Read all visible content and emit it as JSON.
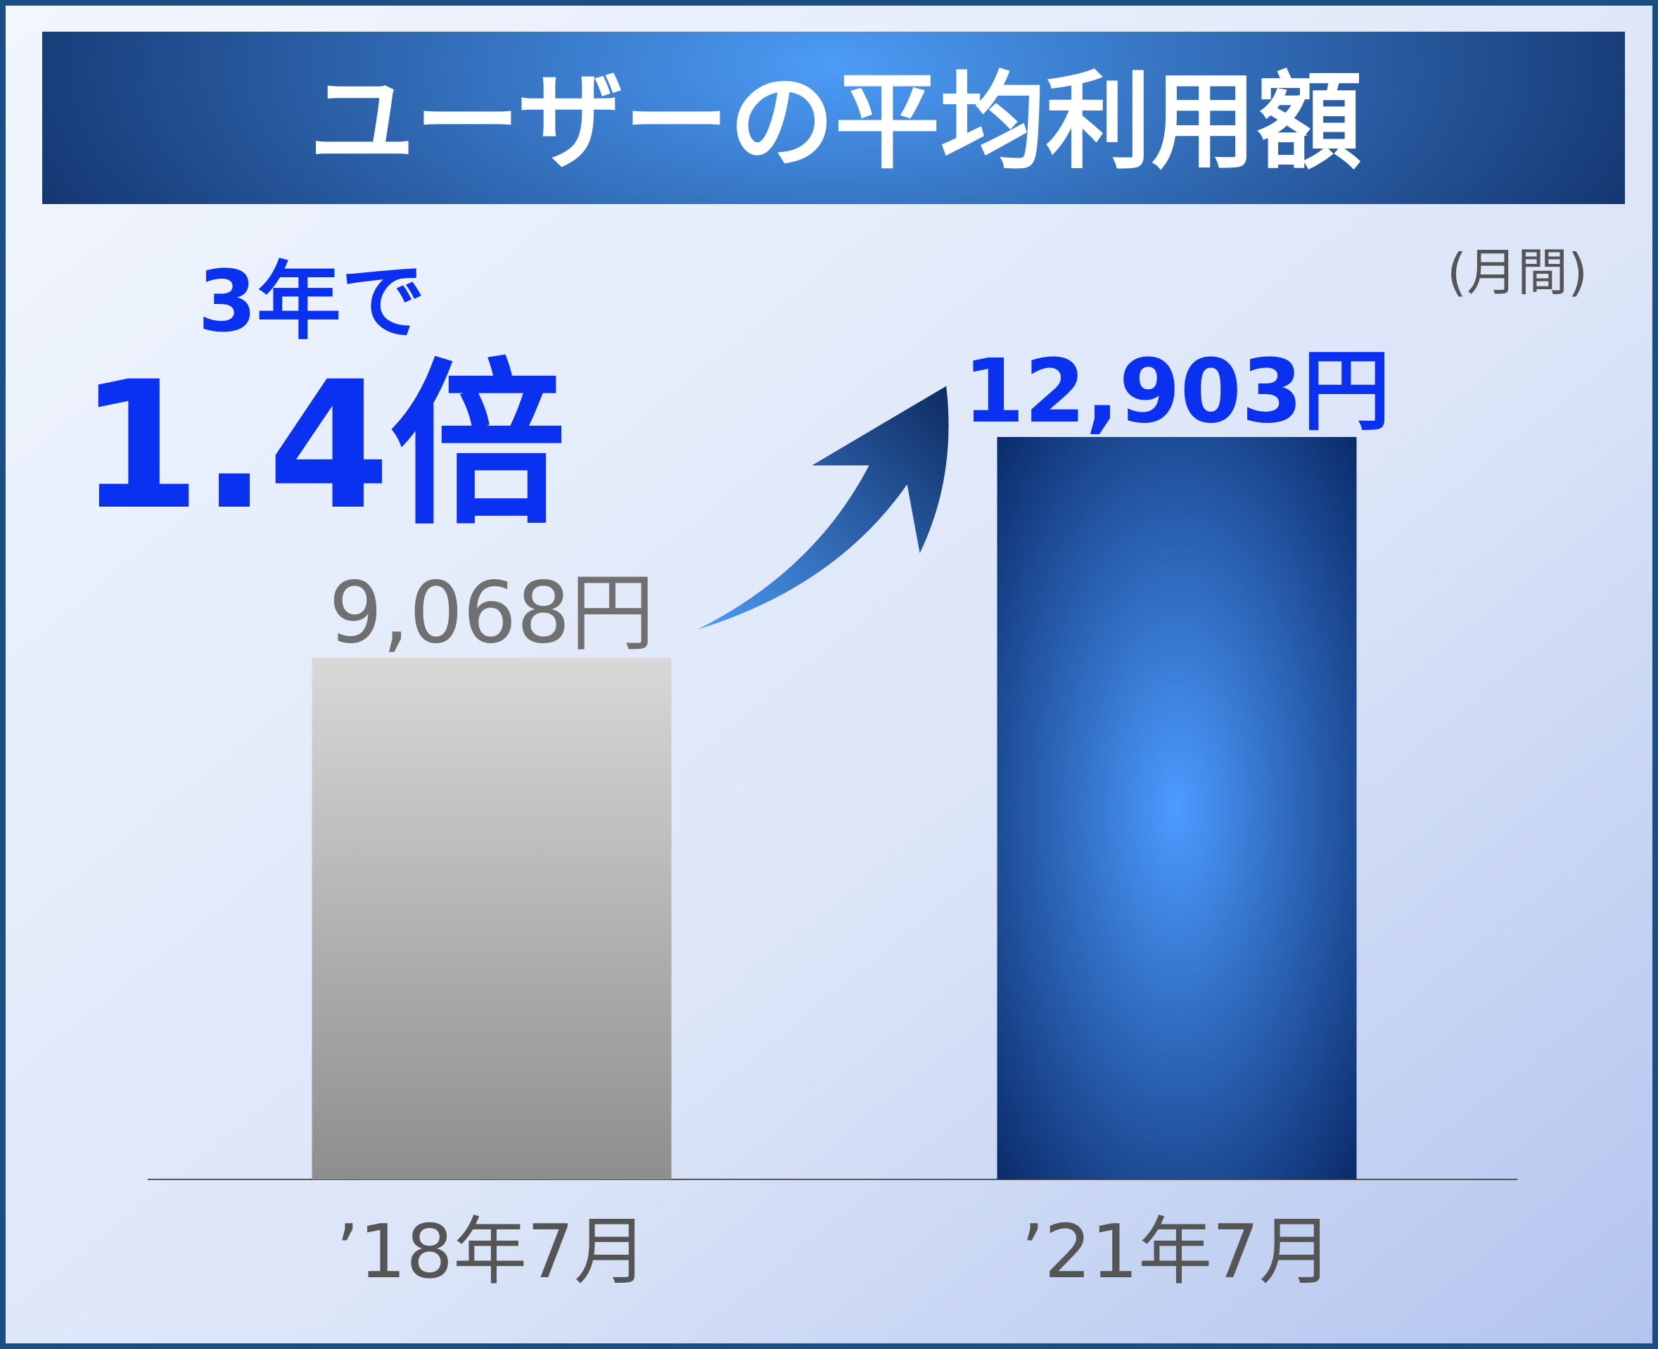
{
  "chart_data": {
    "type": "bar",
    "title": "ユーザーの平均利用額",
    "note": "(月間)",
    "annotations": [
      "3年で",
      "1.4倍"
    ],
    "categories": [
      "’18年7月",
      "’21年7月"
    ],
    "values": [
      9068,
      12903
    ],
    "value_labels": [
      "9,068円",
      "12,903円"
    ]
  }
}
